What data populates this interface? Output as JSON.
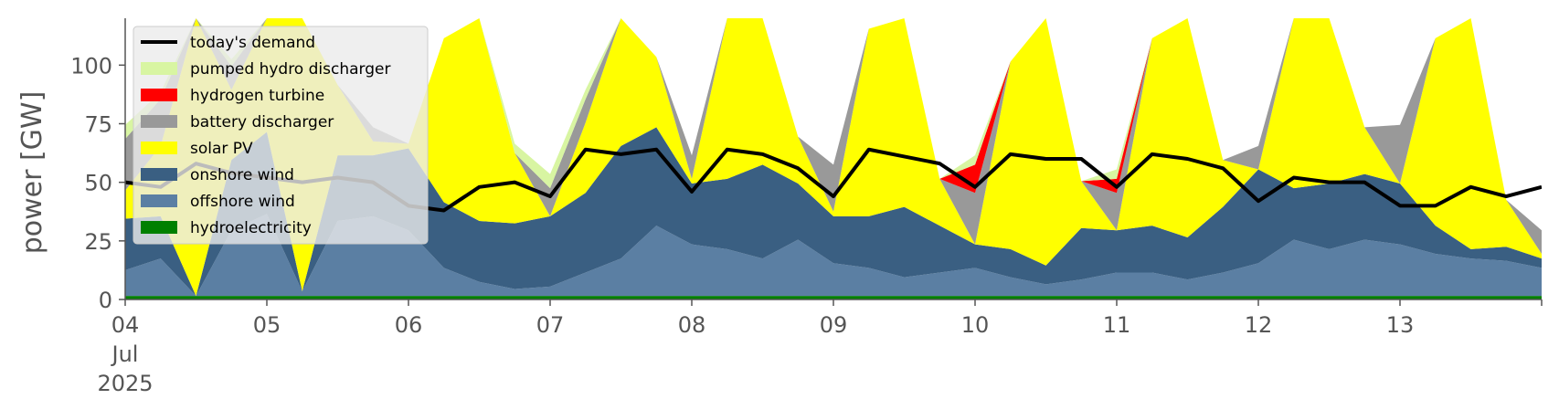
{
  "chart_data": {
    "type": "area",
    "title": "",
    "xlabel": "",
    "ylabel": "power [GW]",
    "ylim": [
      0,
      120
    ],
    "xlim_days": [
      "2025-07-04",
      "2025-07-14"
    ],
    "yticks": [
      0,
      25,
      50,
      75,
      100
    ],
    "xtick_labels": [
      {
        "lines": [
          "04",
          "Jul",
          "2025"
        ]
      },
      {
        "lines": [
          "05"
        ]
      },
      {
        "lines": [
          "06"
        ]
      },
      {
        "lines": [
          "07"
        ]
      },
      {
        "lines": [
          "08"
        ]
      },
      {
        "lines": [
          "09"
        ]
      },
      {
        "lines": [
          "10"
        ]
      },
      {
        "lines": [
          "11"
        ]
      },
      {
        "lines": [
          "12"
        ]
      },
      {
        "lines": [
          "13"
        ]
      }
    ],
    "grid": false,
    "legend_position": "top-left",
    "x": [
      "2025-07-04 00:00",
      "2025-07-04 06:00",
      "2025-07-04 12:00",
      "2025-07-04 18:00",
      "2025-07-05 00:00",
      "2025-07-05 06:00",
      "2025-07-05 12:00",
      "2025-07-05 18:00",
      "2025-07-06 00:00",
      "2025-07-06 06:00",
      "2025-07-06 12:00",
      "2025-07-06 18:00",
      "2025-07-07 00:00",
      "2025-07-07 06:00",
      "2025-07-07 12:00",
      "2025-07-07 18:00",
      "2025-07-08 00:00",
      "2025-07-08 06:00",
      "2025-07-08 12:00",
      "2025-07-08 18:00",
      "2025-07-09 00:00",
      "2025-07-09 06:00",
      "2025-07-09 12:00",
      "2025-07-09 18:00",
      "2025-07-10 00:00",
      "2025-07-10 06:00",
      "2025-07-10 12:00",
      "2025-07-10 18:00",
      "2025-07-11 00:00",
      "2025-07-11 06:00",
      "2025-07-11 12:00",
      "2025-07-11 18:00",
      "2025-07-12 00:00",
      "2025-07-12 06:00",
      "2025-07-12 12:00",
      "2025-07-12 18:00",
      "2025-07-13 00:00",
      "2025-07-13 06:00",
      "2025-07-13 12:00",
      "2025-07-13 18:00",
      "2025-07-14 00:00"
    ],
    "stack_series": [
      {
        "name": "hydroelectricity",
        "color": "#008000",
        "values": [
          1.5,
          1.5,
          1.5,
          1.5,
          1.5,
          1.5,
          1.5,
          1.5,
          1.5,
          1.5,
          1.5,
          1.5,
          1.5,
          1.5,
          1.5,
          1.5,
          1.5,
          1.5,
          1.5,
          1.5,
          1.5,
          1.5,
          1.5,
          1.5,
          1.5,
          1.5,
          1.5,
          1.5,
          1.5,
          1.5,
          1.5,
          1.5,
          1.5,
          1.5,
          1.5,
          1.5,
          1.5,
          1.5,
          1.5,
          1.5,
          1.5
        ]
      },
      {
        "name": "offshore wind",
        "color": "#5b7fa3",
        "values": [
          11,
          16,
          0,
          28,
          35,
          2,
          32,
          34,
          28,
          12,
          6,
          3,
          4,
          10,
          16,
          30,
          22,
          20,
          16,
          24,
          14,
          12,
          8,
          10,
          12,
          8,
          5,
          7,
          10,
          10,
          7,
          10,
          14,
          24,
          20,
          24,
          22,
          18,
          16,
          15,
          12
        ]
      },
      {
        "name": "onshore wind",
        "color": "#3a5f82",
        "values": [
          22,
          18,
          0,
          30,
          35,
          0,
          28,
          26,
          35,
          28,
          26,
          28,
          30,
          34,
          48,
          42,
          26,
          30,
          40,
          24,
          20,
          22,
          30,
          20,
          10,
          12,
          8,
          22,
          18,
          20,
          18,
          28,
          40,
          22,
          28,
          28,
          26,
          12,
          4,
          6,
          4
        ]
      },
      {
        "name": "solar PV",
        "color": "#ffff00",
        "values": [
          12,
          30,
          120,
          30,
          60,
          120,
          30,
          6,
          2,
          70,
          120,
          30,
          0,
          30,
          120,
          30,
          2,
          80,
          120,
          20,
          2,
          80,
          120,
          20,
          0,
          80,
          120,
          20,
          0,
          80,
          120,
          20,
          0,
          80,
          120,
          20,
          0,
          80,
          120,
          20,
          2
        ]
      },
      {
        "name": "battery discharger",
        "color": "#999999",
        "values": [
          22,
          20,
          0,
          10,
          0,
          0,
          0,
          6,
          0,
          0,
          0,
          0,
          12,
          10,
          0,
          0,
          10,
          0,
          0,
          0,
          20,
          0,
          0,
          0,
          22,
          0,
          0,
          0,
          16,
          0,
          0,
          0,
          10,
          0,
          0,
          0,
          25,
          0,
          0,
          0,
          10
        ]
      },
      {
        "name": "hydrogen turbine",
        "color": "#ff0000",
        "values": [
          0,
          0,
          0,
          0,
          0,
          0,
          0,
          0,
          0,
          0,
          0,
          0,
          0,
          0,
          0,
          0,
          0,
          0,
          0,
          0,
          0,
          0,
          0,
          0,
          12,
          0,
          0,
          0,
          6,
          0,
          0,
          0,
          0,
          0,
          0,
          0,
          0,
          0,
          0,
          0,
          0
        ]
      },
      {
        "name": "pumped hydro discharger",
        "color": "#d8f5a2",
        "values": [
          6,
          3,
          0,
          3,
          0,
          0,
          0,
          0,
          0,
          0,
          0,
          4,
          6,
          4,
          0,
          0,
          0,
          0,
          0,
          0,
          0,
          0,
          0,
          0,
          4,
          0,
          0,
          0,
          4,
          0,
          0,
          0,
          0,
          0,
          0,
          0,
          0,
          0,
          0,
          0,
          0
        ]
      }
    ],
    "line_series": {
      "name": "today's demand",
      "color": "#000000",
      "values": [
        50,
        48,
        58,
        54,
        52,
        50,
        52,
        50,
        40,
        38,
        48,
        50,
        44,
        64,
        62,
        64,
        46,
        64,
        62,
        56,
        44,
        64,
        61,
        58,
        48,
        62,
        60,
        60,
        48,
        62,
        60,
        56,
        42,
        52,
        50,
        50,
        40,
        40,
        48,
        44,
        48
      ]
    },
    "legend_order": [
      "today's demand",
      "pumped hydro discharger",
      "hydrogen turbine",
      "battery discharger",
      "solar PV",
      "onshore wind",
      "offshore wind",
      "hydroelectricity"
    ]
  }
}
